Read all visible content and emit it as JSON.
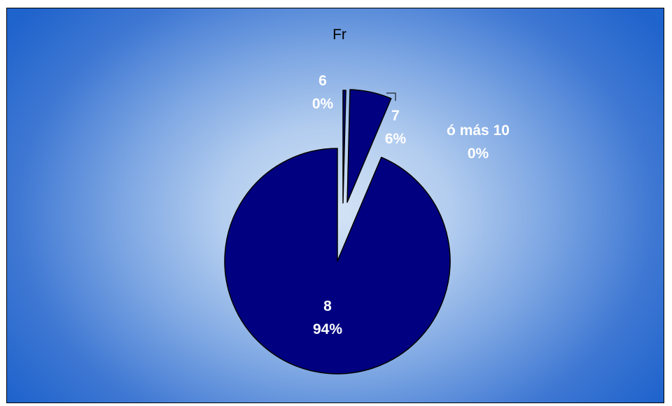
{
  "chart_data": {
    "type": "pie",
    "title": "Fr",
    "slices": [
      {
        "category": "6",
        "percent_label": "0%",
        "value": 0.4
      },
      {
        "category": "7",
        "percent_label": "6%",
        "value": 6
      },
      {
        "category": "ó más 10",
        "percent_label": "0%",
        "value": 0
      },
      {
        "category": "8",
        "percent_label": "94%",
        "value": 94
      }
    ],
    "exploded": true,
    "legend": "none",
    "colors": {
      "slice_fill": "#000080",
      "slice_stroke": "#000000",
      "label_text": "#ffffff",
      "title_text": "#000000",
      "background_center": "#d4e3f6",
      "background_edge": "#1f63cc"
    }
  }
}
